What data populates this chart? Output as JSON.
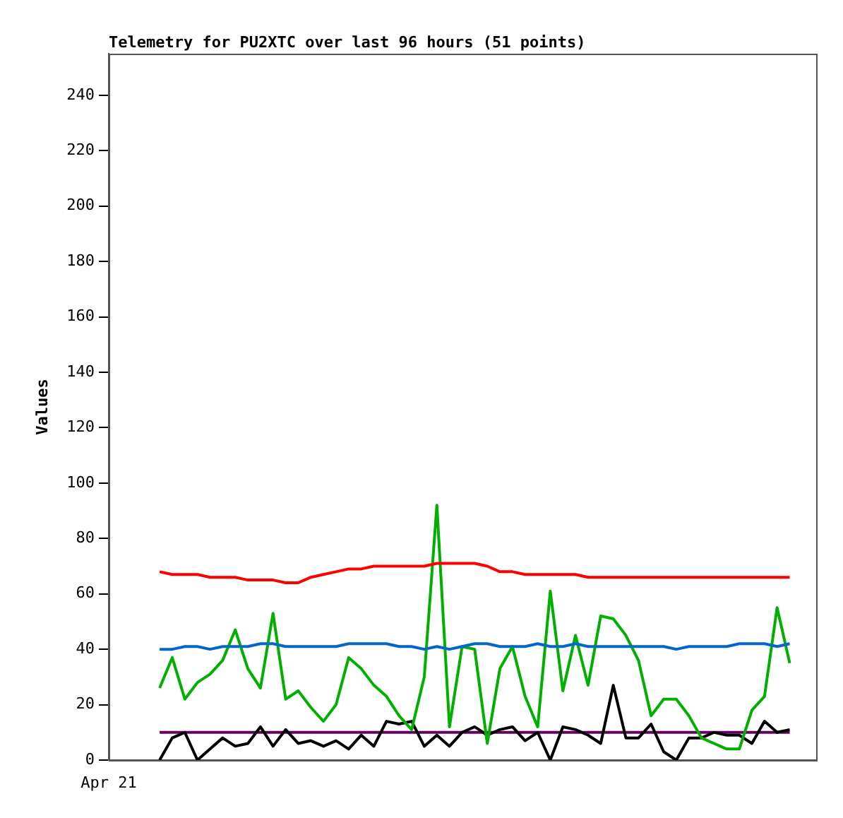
{
  "chart_data": {
    "type": "line",
    "title": "Telemetry for PU2XTC over last 96 hours (51 points)",
    "ylabel": "Values",
    "categories": [
      null,
      null,
      null,
      null,
      null,
      null,
      null,
      null,
      null,
      null,
      null,
      null,
      null,
      null,
      null,
      null,
      null,
      null,
      null,
      null,
      null,
      null,
      null,
      null,
      null,
      null,
      null,
      null,
      null,
      null,
      null,
      null,
      null,
      null,
      null,
      null,
      null,
      null,
      null,
      null,
      null,
      null,
      null,
      null,
      null,
      null,
      null,
      null,
      null,
      null,
      null
    ],
    "annotations": [
      "Apr 21"
    ],
    "ylim": [
      0,
      255
    ],
    "yticks": [
      0,
      20,
      40,
      60,
      80,
      100,
      120,
      140,
      160,
      180,
      200,
      220,
      240
    ],
    "marker": "none",
    "line_style": "solid",
    "series": [
      {
        "color": "#ff0000",
        "values": [
          68,
          67,
          67,
          67,
          66,
          66,
          66,
          65,
          65,
          65,
          64,
          64,
          66,
          67,
          68,
          69,
          69,
          70,
          70,
          70,
          70,
          70,
          71,
          71,
          71,
          71,
          70,
          68,
          68,
          67,
          67,
          67,
          67,
          67,
          66,
          66,
          66,
          66,
          66,
          66,
          66,
          66,
          66,
          66,
          66,
          66,
          66,
          66,
          66,
          66,
          66
        ]
      },
      {
        "color": "#0066cc",
        "values": [
          40,
          40,
          41,
          41,
          40,
          41,
          41,
          41,
          42,
          42,
          41,
          41,
          41,
          41,
          41,
          42,
          42,
          42,
          42,
          41,
          41,
          40,
          41,
          40,
          41,
          42,
          42,
          41,
          41,
          41,
          42,
          41,
          41,
          42,
          41,
          41,
          41,
          41,
          41,
          41,
          41,
          40,
          41,
          41,
          41,
          41,
          42,
          42,
          42,
          41,
          42
        ]
      },
      {
        "color": "#00b000",
        "values": [
          26,
          37,
          22,
          28,
          31,
          36,
          47,
          33,
          26,
          53,
          22,
          25,
          19,
          14,
          20,
          37,
          33,
          27,
          23,
          16,
          11,
          30,
          92,
          12,
          41,
          40,
          6,
          33,
          41,
          23,
          12,
          61,
          25,
          45,
          27,
          52,
          51,
          45,
          36,
          16,
          22,
          22,
          16,
          8,
          6,
          4,
          4,
          18,
          23,
          55,
          35
        ]
      },
      {
        "color": "#000000",
        "values": [
          0,
          8,
          10,
          0,
          4,
          8,
          5,
          6,
          12,
          5,
          11,
          6,
          7,
          5,
          7,
          4,
          9,
          5,
          14,
          13,
          14,
          5,
          9,
          5,
          10,
          12,
          9,
          11,
          12,
          7,
          10,
          0,
          12,
          11,
          9,
          6,
          27,
          8,
          8,
          13,
          3,
          0,
          8,
          8,
          10,
          9,
          9,
          6,
          14,
          10,
          11
        ]
      },
      {
        "color": "#660066",
        "values": [
          10,
          10,
          10,
          10,
          10,
          10,
          10,
          10,
          10,
          10,
          10,
          10,
          10,
          10,
          10,
          10,
          10,
          10,
          10,
          10,
          10,
          10,
          10,
          10,
          10,
          10,
          10,
          10,
          10,
          10,
          10,
          10,
          10,
          10,
          10,
          10,
          10,
          10,
          10,
          10,
          10,
          10,
          10,
          10,
          10,
          10,
          10,
          10,
          10,
          10,
          10
        ]
      }
    ]
  }
}
